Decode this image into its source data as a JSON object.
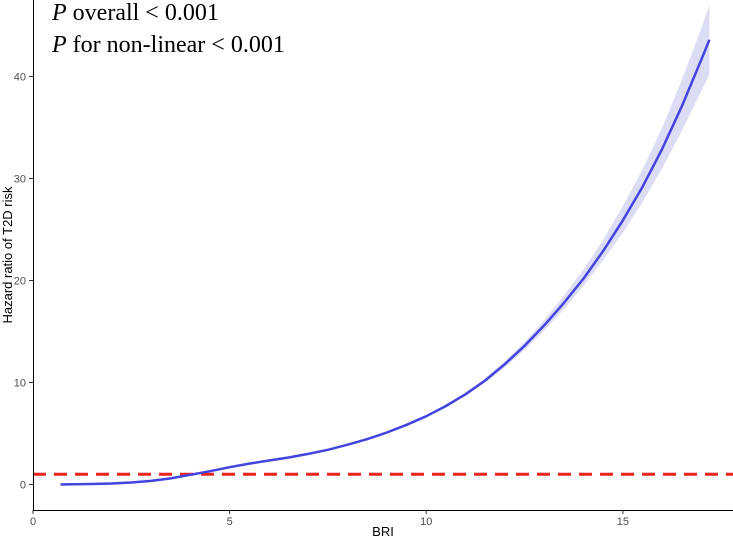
{
  "chart_data": {
    "type": "line",
    "title": "",
    "xlabel": "BRI",
    "ylabel": "Hazard ratio of T2D risk",
    "xlim": [
      0,
      17.8
    ],
    "ylim": [
      -2.5,
      47.5
    ],
    "xticks": [
      0,
      5,
      10,
      15
    ],
    "yticks": [
      0,
      10,
      20,
      30,
      40
    ],
    "grid": false,
    "legend": "none",
    "annotations": [
      {
        "prefix": "P",
        "text": " overall < 0.001"
      },
      {
        "prefix": "P",
        "text": " for non-linear < 0.001"
      }
    ],
    "reference_line": {
      "y": 1,
      "style": "dashed",
      "color": "#e8241c"
    },
    "series": [
      {
        "color": "#4343e0",
        "band_color": "#dcdcf5",
        "x": [
          0.7,
          1.0,
          1.5,
          2.0,
          2.5,
          3.0,
          3.5,
          4.0,
          4.5,
          5.0,
          5.5,
          6.0,
          6.5,
          7.0,
          7.5,
          8.0,
          8.5,
          9.0,
          9.5,
          10.0,
          10.5,
          11.0,
          11.5,
          12.0,
          12.5,
          13.0,
          13.5,
          14.0,
          14.5,
          15.0,
          15.5,
          16.0,
          16.5,
          17.0,
          17.2
        ],
        "y": [
          0.0,
          0.02,
          0.05,
          0.1,
          0.2,
          0.35,
          0.6,
          0.95,
          1.3,
          1.7,
          2.05,
          2.35,
          2.65,
          3.0,
          3.4,
          3.9,
          4.45,
          5.1,
          5.85,
          6.7,
          7.7,
          8.85,
          10.2,
          11.8,
          13.6,
          15.6,
          17.8,
          20.2,
          22.9,
          25.9,
          29.2,
          32.9,
          37.1,
          41.7,
          43.6
        ],
        "lower": [
          0.0,
          0.02,
          0.05,
          0.1,
          0.2,
          0.35,
          0.6,
          0.95,
          1.3,
          1.7,
          2.05,
          2.35,
          2.65,
          3.0,
          3.4,
          3.9,
          4.45,
          5.1,
          5.85,
          6.65,
          7.6,
          8.7,
          10.0,
          11.5,
          13.2,
          15.1,
          17.2,
          19.5,
          22.0,
          24.7,
          27.7,
          31.0,
          34.7,
          38.6,
          40.2
        ],
        "upper": [
          0.0,
          0.02,
          0.05,
          0.1,
          0.2,
          0.35,
          0.6,
          0.95,
          1.3,
          1.7,
          2.05,
          2.35,
          2.65,
          3.0,
          3.4,
          3.9,
          4.45,
          5.1,
          5.85,
          6.75,
          7.8,
          9.0,
          10.4,
          12.1,
          14.0,
          16.1,
          18.5,
          21.1,
          24.0,
          27.3,
          30.9,
          35.0,
          39.7,
          44.8,
          47.0
        ]
      }
    ]
  }
}
